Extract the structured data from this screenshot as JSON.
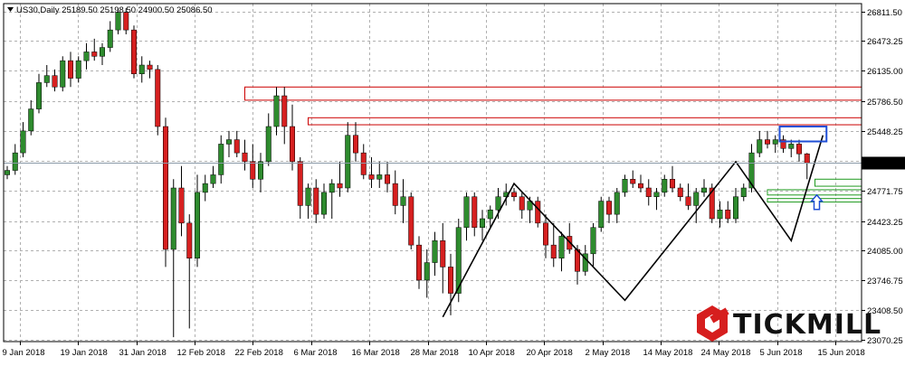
{
  "header": {
    "symbol": "US30",
    "timeframe": "Daily",
    "ohlc_line": "US30,Daily  25189.50 25198.50 24900.50 25086.50"
  },
  "brand": {
    "name": "TICKMILL",
    "logo_icon": "tickmill-hex-logo-icon"
  },
  "colors": {
    "background": "#ffffff",
    "grid": "#b0b0b0",
    "up": "#2e8b2e",
    "down": "#d62020",
    "wick": "#000000",
    "resistance": "#cc0000",
    "support": "#1f9a1f",
    "highlight": "#1f4fd6",
    "logo": "#d61e1e",
    "price_tag_bg": "#000000",
    "price_tag_text": "#ffffff"
  },
  "chart_data": {
    "type": "candlestick",
    "y_axis": {
      "ticks": [
        "26811.50",
        "26473.25",
        "26135.00",
        "25786.50",
        "25448.25",
        "25110.00",
        "24771.75",
        "24423.25",
        "24085.00",
        "23746.75",
        "23408.50",
        "23070.25"
      ],
      "ylim": [
        23050,
        26900
      ]
    },
    "x_axis": {
      "ticks": [
        "9 Jan 2018",
        "19 Jan 2018",
        "31 Jan 2018",
        "12 Feb 2018",
        "22 Feb 2018",
        "6 Mar 2018",
        "16 Mar 2018",
        "28 Mar 2018",
        "10 Apr 2018",
        "20 Apr 2018",
        "2 May 2018",
        "14 May 2018",
        "24 May 2018",
        "5 Jun 2018",
        "15 Jun 2018"
      ]
    },
    "current_price": "25086.50",
    "candles": [
      [
        24950,
        25050,
        24900,
        25000
      ],
      [
        25000,
        25300,
        24950,
        25200
      ],
      [
        25200,
        25550,
        25150,
        25450
      ],
      [
        25450,
        25800,
        25400,
        25700
      ],
      [
        25700,
        26100,
        25650,
        26000
      ],
      [
        26000,
        26200,
        25950,
        26080
      ],
      [
        26080,
        26150,
        25900,
        25950
      ],
      [
        25950,
        26300,
        25900,
        26250
      ],
      [
        26250,
        26350,
        25950,
        26050
      ],
      [
        26050,
        26300,
        26000,
        26250
      ],
      [
        26250,
        26450,
        26150,
        26350
      ],
      [
        26350,
        26500,
        26250,
        26300
      ],
      [
        26300,
        26450,
        26200,
        26400
      ],
      [
        26400,
        26700,
        26350,
        26600
      ],
      [
        26600,
        26850,
        26550,
        26800
      ],
      [
        26800,
        26850,
        26550,
        26600
      ],
      [
        26600,
        26650,
        26050,
        26100
      ],
      [
        26100,
        26300,
        26000,
        26200
      ],
      [
        26200,
        26250,
        26050,
        26150
      ],
      [
        26150,
        26200,
        25400,
        25500
      ],
      [
        25500,
        25600,
        23900,
        24100
      ],
      [
        24100,
        24900,
        23100,
        24800
      ],
      [
        24800,
        25050,
        24250,
        24400
      ],
      [
        24400,
        24500,
        23200,
        24000
      ],
      [
        24000,
        24950,
        23900,
        24750
      ],
      [
        24750,
        24950,
        24650,
        24850
      ],
      [
        24850,
        25050,
        24800,
        24950
      ],
      [
        24950,
        25400,
        24850,
        25300
      ],
      [
        25300,
        25450,
        25150,
        25350
      ],
      [
        25350,
        25450,
        25150,
        25200
      ],
      [
        25200,
        25350,
        25000,
        25100
      ],
      [
        25100,
        25300,
        24800,
        24900
      ],
      [
        24900,
        25200,
        24750,
        25100
      ],
      [
        25100,
        25650,
        25050,
        25500
      ],
      [
        25500,
        25950,
        25400,
        25850
      ],
      [
        25850,
        25950,
        25300,
        25500
      ],
      [
        25500,
        25750,
        25000,
        25100
      ],
      [
        25100,
        25150,
        24450,
        24600
      ],
      [
        24600,
        24850,
        24450,
        24800
      ],
      [
        24800,
        24900,
        24400,
        24500
      ],
      [
        24500,
        24850,
        24450,
        24750
      ],
      [
        24750,
        24900,
        24450,
        24850
      ],
      [
        24850,
        25100,
        24700,
        24800
      ],
      [
        24800,
        25550,
        24750,
        25400
      ],
      [
        25400,
        25550,
        25100,
        25200
      ],
      [
        25200,
        25300,
        24900,
        24950
      ],
      [
        24950,
        25150,
        24800,
        24900
      ],
      [
        24900,
        25100,
        24800,
        24950
      ],
      [
        24950,
        25100,
        24750,
        24850
      ],
      [
        24850,
        25000,
        24500,
        24600
      ],
      [
        24600,
        24900,
        24400,
        24700
      ],
      [
        24700,
        24750,
        24100,
        24150
      ],
      [
        24150,
        24250,
        23650,
        23750
      ],
      [
        23750,
        24100,
        23550,
        23950
      ],
      [
        23950,
        24300,
        23800,
        24200
      ],
      [
        24200,
        24400,
        23600,
        23900
      ],
      [
        23900,
        24050,
        23350,
        23600
      ],
      [
        23600,
        24450,
        23500,
        24350
      ],
      [
        24350,
        24750,
        24200,
        24700
      ],
      [
        24700,
        24750,
        24250,
        24350
      ],
      [
        24350,
        24550,
        24200,
        24450
      ],
      [
        24450,
        24600,
        24350,
        24550
      ],
      [
        24550,
        24800,
        24450,
        24700
      ],
      [
        24700,
        24850,
        24600,
        24750
      ],
      [
        24750,
        24800,
        24650,
        24700
      ],
      [
        24700,
        24750,
        24450,
        24550
      ],
      [
        24550,
        24700,
        24400,
        24650
      ],
      [
        24650,
        24700,
        24350,
        24400
      ],
      [
        24400,
        24500,
        24000,
        24150
      ],
      [
        24150,
        24400,
        23900,
        24000
      ],
      [
        24000,
        24300,
        23850,
        24250
      ],
      [
        24250,
        24400,
        24050,
        24100
      ],
      [
        24100,
        24150,
        23700,
        23850
      ],
      [
        23850,
        24150,
        23800,
        24050
      ],
      [
        24050,
        24400,
        23900,
        24350
      ],
      [
        24350,
        24700,
        24300,
        24650
      ],
      [
        24650,
        24700,
        24400,
        24500
      ],
      [
        24500,
        24800,
        24400,
        24750
      ],
      [
        24750,
        24950,
        24700,
        24900
      ],
      [
        24900,
        25000,
        24800,
        24850
      ],
      [
        24850,
        24950,
        24750,
        24800
      ],
      [
        24800,
        24900,
        24600,
        24700
      ],
      [
        24700,
        24800,
        24550,
        24750
      ],
      [
        24750,
        24950,
        24700,
        24900
      ],
      [
        24900,
        25050,
        24750,
        24800
      ],
      [
        24800,
        24850,
        24650,
        24700
      ],
      [
        24700,
        24850,
        24550,
        24600
      ],
      [
        24600,
        24800,
        24400,
        24750
      ],
      [
        24750,
        24900,
        24700,
        24800
      ],
      [
        24800,
        24850,
        24400,
        24450
      ],
      [
        24450,
        24650,
        24350,
        24550
      ],
      [
        24550,
        24650,
        24400,
        24450
      ],
      [
        24450,
        24800,
        24400,
        24700
      ],
      [
        24700,
        24850,
        24650,
        24800
      ],
      [
        24800,
        25300,
        24750,
        25200
      ],
      [
        25200,
        25450,
        25150,
        25350
      ],
      [
        25350,
        25450,
        25250,
        25300
      ],
      [
        25300,
        25400,
        25200,
        25350
      ],
      [
        25350,
        25400,
        25200,
        25250
      ],
      [
        25250,
        25350,
        25150,
        25300
      ],
      [
        25300,
        25350,
        25100,
        25189
      ],
      [
        25189,
        25199,
        24900,
        25086
      ]
    ],
    "resistance_zones": [
      [
        25800,
        25950
      ],
      [
        25520,
        25600
      ]
    ],
    "support_zones": [
      [
        24820,
        24900
      ],
      [
        24720,
        24780
      ],
      [
        24640,
        24680
      ]
    ],
    "highlight_box": [
      25330,
      25500
    ],
    "zigzag": [
      {
        "candle": 55,
        "price": 23330
      },
      {
        "candle": 64,
        "price": 24850
      },
      {
        "candle": 78,
        "price": 23520
      },
      {
        "candle": 92,
        "price": 25100
      },
      {
        "candle": 99,
        "price": 24200
      },
      {
        "candle": 103,
        "price": 25400
      }
    ]
  }
}
